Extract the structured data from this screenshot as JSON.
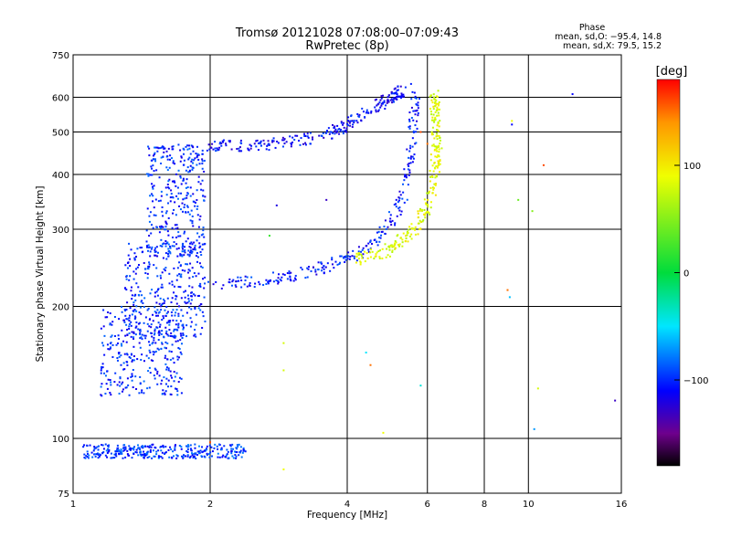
{
  "chart_data": {
    "type": "scatter",
    "title": "Tromsø 20121028 07:08:00–07:09:43",
    "subtitle": "RwPretec (8p)",
    "xlabel": "Frequency [MHz]",
    "ylabel": "Stationary phase Virtual Height [km]",
    "x_scale": "log",
    "y_scale": "log",
    "xlim": [
      1,
      16
    ],
    "ylim": [
      75,
      750
    ],
    "x_ticks": [
      1,
      2,
      4,
      6,
      8,
      10,
      16
    ],
    "x_tick_labels": [
      "1",
      "2",
      "4",
      "6",
      "8",
      "10",
      "16"
    ],
    "y_ticks": [
      75,
      100,
      200,
      300,
      400,
      500,
      600,
      750
    ],
    "y_tick_labels": [
      "75",
      "100",
      "200",
      "300",
      "400",
      "500",
      "600",
      "750"
    ],
    "x_grid_lines": [
      2,
      4,
      6,
      8,
      10
    ],
    "y_grid_lines": [
      100,
      200,
      300,
      400,
      500,
      600
    ],
    "phase_stats": {
      "heading": "Phase",
      "o_mode": "mean, sd,O: −95.4, 14.8",
      "x_mode": "mean, sd,X:  79.5, 15.2"
    },
    "colorbar": {
      "label": "[deg]",
      "min": -180,
      "max": 180,
      "ticks": [
        100,
        0,
        -100
      ],
      "tick_labels": [
        "100",
        "0",
        "−100"
      ]
    },
    "clusters": [
      {
        "desc": "spread F low band",
        "x": [
          1.15,
          1.75
        ],
        "y": [
          125,
          200
        ],
        "phase": -100
      },
      {
        "desc": "spread F mid band",
        "x": [
          1.3,
          1.95
        ],
        "y": [
          170,
          280
        ],
        "phase": -100
      },
      {
        "desc": "spread F high column",
        "x": [
          1.45,
          1.95
        ],
        "y": [
          260,
          470
        ],
        "phase": -100
      },
      {
        "desc": "F2 O-mode trace",
        "points": [
          [
            1.95,
            225
          ],
          [
            2.5,
            228
          ],
          [
            3.0,
            235
          ],
          [
            3.5,
            245
          ],
          [
            4.0,
            258
          ],
          [
            4.5,
            275
          ],
          [
            5.0,
            310
          ],
          [
            5.3,
            360
          ],
          [
            5.5,
            430
          ],
          [
            5.6,
            520
          ],
          [
            5.65,
            630
          ]
        ],
        "phase": -105
      },
      {
        "desc": "F2 X-mode trace",
        "points": [
          [
            4.2,
            255
          ],
          [
            4.8,
            265
          ],
          [
            5.3,
            285
          ],
          [
            5.8,
            310
          ],
          [
            6.1,
            360
          ],
          [
            6.25,
            420
          ],
          [
            6.3,
            480
          ],
          [
            6.25,
            560
          ],
          [
            6.2,
            610
          ]
        ],
        "phase": 85
      },
      {
        "desc": "upper F trace",
        "points": [
          [
            2.0,
            465
          ],
          [
            2.5,
            465
          ],
          [
            3.0,
            475
          ],
          [
            3.5,
            490
          ],
          [
            4.0,
            520
          ],
          [
            4.5,
            560
          ],
          [
            5.0,
            600
          ],
          [
            5.3,
            620
          ]
        ],
        "phase": -110
      },
      {
        "desc": "low sporadic echoes",
        "x": [
          1.05,
          2.4
        ],
        "y": [
          90,
          97
        ],
        "phase": -95
      }
    ],
    "scattered_points": [
      {
        "x": 9.2,
        "y": 520,
        "phase": -110
      },
      {
        "x": 12.5,
        "y": 610,
        "phase": -110
      },
      {
        "x": 15.5,
        "y": 122,
        "phase": -130
      },
      {
        "x": 10.3,
        "y": 105,
        "phase": -70
      },
      {
        "x": 10.8,
        "y": 420,
        "phase": 160
      },
      {
        "x": 9.5,
        "y": 350,
        "phase": 40
      },
      {
        "x": 10.2,
        "y": 330,
        "phase": 50
      },
      {
        "x": 5.8,
        "y": 132,
        "phase": -40
      },
      {
        "x": 9.1,
        "y": 210,
        "phase": -60
      },
      {
        "x": 9.0,
        "y": 218,
        "phase": 150
      },
      {
        "x": 2.8,
        "y": 340,
        "phase": -120
      },
      {
        "x": 3.6,
        "y": 350,
        "phase": -130
      },
      {
        "x": 2.9,
        "y": 165,
        "phase": 80
      },
      {
        "x": 2.9,
        "y": 143,
        "phase": 80
      },
      {
        "x": 4.4,
        "y": 157,
        "phase": -50
      },
      {
        "x": 4.5,
        "y": 147,
        "phase": 150
      },
      {
        "x": 4.8,
        "y": 103,
        "phase": 90
      },
      {
        "x": 2.9,
        "y": 85,
        "phase": 90
      },
      {
        "x": 9.2,
        "y": 530,
        "phase": 90
      },
      {
        "x": 10.5,
        "y": 130,
        "phase": 80
      },
      {
        "x": 6.0,
        "y": 470,
        "phase": 150
      },
      {
        "x": 5.8,
        "y": 500,
        "phase": 160
      },
      {
        "x": 2.7,
        "y": 290,
        "phase": 20
      },
      {
        "x": 2.0,
        "y": 98,
        "phase": 160
      }
    ],
    "annotations": []
  }
}
